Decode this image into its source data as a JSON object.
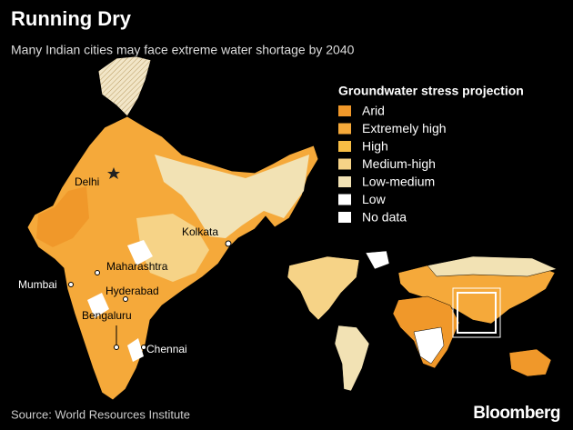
{
  "header": {
    "title": "Running Dry",
    "subtitle": "Many Indian cities may face extreme water shortage by 2040"
  },
  "legend": {
    "title": "Groundwater stress projection",
    "items": [
      {
        "label": "Arid",
        "color": "#f0982a"
      },
      {
        "label": "Extremely high",
        "color": "#f5a93a"
      },
      {
        "label": "High",
        "color": "#f7bd45"
      },
      {
        "label": "Medium-high",
        "color": "#f6d387"
      },
      {
        "label": "Low-medium",
        "color": "#f2e2b4"
      },
      {
        "label": "Low",
        "color": "#ffffff"
      },
      {
        "label": "No data",
        "color": "#ffffff"
      }
    ]
  },
  "cities": [
    "Delhi",
    "Kolkata",
    "Maharashtra",
    "Mumbai",
    "Hyderabad",
    "Bengaluru",
    "Chennai"
  ],
  "footer": {
    "source": "Source: World Resources Institute",
    "brand": "Bloomberg"
  }
}
